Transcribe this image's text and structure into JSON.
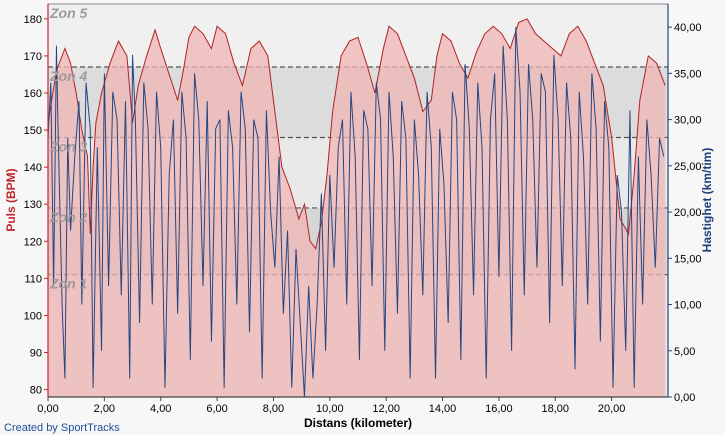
{
  "chart_data": {
    "type": "area",
    "xlabel": "Distans (kilometer)",
    "ylabel_left": "Puls (BPM)",
    "ylabel_right": "Hastighet (km/tim)",
    "xlim": [
      0,
      22
    ],
    "ylim_left": [
      78,
      184
    ],
    "ylim_right": [
      0,
      42.5
    ],
    "x_ticks": [
      "0,00",
      "2,00",
      "4,00",
      "6,00",
      "8,00",
      "10,00",
      "12,00",
      "14,00",
      "16,00",
      "18,00",
      "20,00"
    ],
    "x_tick_values": [
      0,
      2,
      4,
      6,
      8,
      10,
      12,
      14,
      16,
      18,
      20
    ],
    "y_left_ticks": [
      "80",
      "90",
      "100",
      "110",
      "120",
      "130",
      "140",
      "150",
      "160",
      "170",
      "180"
    ],
    "y_left_tick_values": [
      80,
      90,
      100,
      110,
      120,
      130,
      140,
      150,
      160,
      170,
      180
    ],
    "y_right_ticks": [
      "0,00",
      "5,00",
      "10,00",
      "15,00",
      "20,00",
      "25,00",
      "30,00",
      "35,00",
      "40,00"
    ],
    "y_right_tick_values": [
      0,
      5,
      10,
      15,
      20,
      25,
      30,
      35,
      40
    ],
    "zones": [
      {
        "label": "Zon 1",
        "from": 78,
        "to": 111
      },
      {
        "label": "Zon 2",
        "from": 111,
        "to": 129
      },
      {
        "label": "Zon 3",
        "from": 129,
        "to": 148
      },
      {
        "label": "Zon 4",
        "from": 148,
        "to": 167
      },
      {
        "label": "Zon 5",
        "from": 167,
        "to": 184
      }
    ],
    "series": [
      {
        "axis": "left",
        "color": "#b02222",
        "fill": "#f2b6b6",
        "x": [
          0,
          0.3,
          0.6,
          0.8,
          1.0,
          1.2,
          1.4,
          1.5,
          1.6,
          1.7,
          1.9,
          2.2,
          2.5,
          2.8,
          3.0,
          3.2,
          3.5,
          3.8,
          4.0,
          4.3,
          4.6,
          4.8,
          5.0,
          5.2,
          5.5,
          5.8,
          6.0,
          6.3,
          6.6,
          6.9,
          7.2,
          7.5,
          7.8,
          8.0,
          8.3,
          8.6,
          8.9,
          9.1,
          9.3,
          9.5,
          9.7,
          9.9,
          10.1,
          10.4,
          10.7,
          11.0,
          11.3,
          11.6,
          11.9,
          12.1,
          12.4,
          12.7,
          13.0,
          13.3,
          13.6,
          13.8,
          14.0,
          14.3,
          14.6,
          14.9,
          15.2,
          15.5,
          15.8,
          16.1,
          16.4,
          16.7,
          17.0,
          17.3,
          17.6,
          17.9,
          18.2,
          18.5,
          18.8,
          19.1,
          19.4,
          19.7,
          20.0,
          20.3,
          20.6,
          20.8,
          21.0,
          21.3,
          21.6,
          21.9
        ],
        "values": [
          152,
          166,
          172,
          168,
          160,
          150,
          143,
          122,
          140,
          152,
          160,
          168,
          174,
          170,
          152,
          162,
          170,
          177,
          172,
          165,
          158,
          166,
          175,
          178,
          176,
          172,
          178,
          176,
          168,
          162,
          172,
          174,
          170,
          158,
          140,
          134,
          126,
          130,
          120,
          118,
          125,
          138,
          155,
          170,
          174,
          175,
          168,
          160,
          172,
          178,
          176,
          170,
          164,
          155,
          158,
          170,
          176,
          174,
          168,
          164,
          171,
          176,
          178,
          176,
          172,
          179,
          180,
          176,
          174,
          172,
          170,
          176,
          178,
          174,
          168,
          162,
          148,
          126,
          122,
          138,
          158,
          170,
          168,
          162
        ]
      },
      {
        "axis": "right",
        "color": "#27477f",
        "x": [
          0,
          0.1,
          0.2,
          0.3,
          0.35,
          0.5,
          0.6,
          0.7,
          0.8,
          0.95,
          1.1,
          1.2,
          1.35,
          1.5,
          1.6,
          1.75,
          1.9,
          2.0,
          2.15,
          2.3,
          2.45,
          2.6,
          2.75,
          2.9,
          3.0,
          3.1,
          3.25,
          3.4,
          3.55,
          3.7,
          3.85,
          4.0,
          4.15,
          4.3,
          4.45,
          4.6,
          4.75,
          4.9,
          5.05,
          5.2,
          5.35,
          5.5,
          5.65,
          5.8,
          5.95,
          6.1,
          6.25,
          6.4,
          6.55,
          6.7,
          6.85,
          7.0,
          7.15,
          7.3,
          7.45,
          7.6,
          7.75,
          7.9,
          8.05,
          8.2,
          8.35,
          8.5,
          8.65,
          8.8,
          8.95,
          9.1,
          9.25,
          9.4,
          9.55,
          9.7,
          9.85,
          10.0,
          10.15,
          10.3,
          10.45,
          10.6,
          10.75,
          10.9,
          11.05,
          11.2,
          11.35,
          11.5,
          11.65,
          11.8,
          11.95,
          12.1,
          12.25,
          12.4,
          12.55,
          12.7,
          12.85,
          13.0,
          13.15,
          13.3,
          13.45,
          13.6,
          13.75,
          13.9,
          14.05,
          14.2,
          14.35,
          14.5,
          14.65,
          14.8,
          14.95,
          15.1,
          15.25,
          15.4,
          15.55,
          15.7,
          15.85,
          16.0,
          16.15,
          16.3,
          16.45,
          16.6,
          16.75,
          16.9,
          17.05,
          17.2,
          17.35,
          17.5,
          17.65,
          17.8,
          17.95,
          18.1,
          18.25,
          18.4,
          18.55,
          18.7,
          18.85,
          19.0,
          19.15,
          19.3,
          19.45,
          19.6,
          19.75,
          19.9,
          20.05,
          20.2,
          20.35,
          20.5,
          20.65,
          20.8,
          20.95,
          21.1,
          21.25,
          21.4,
          21.55,
          21.7,
          21.85
        ],
        "values": [
          28,
          34,
          12,
          38,
          30,
          10,
          2,
          28,
          18,
          26,
          32,
          10,
          34,
          29,
          1,
          27,
          5,
          35,
          12,
          33,
          30,
          11,
          32,
          2,
          37,
          30,
          8,
          34,
          29,
          10,
          33,
          27,
          1,
          24,
          30,
          9,
          33,
          28,
          4,
          35,
          30,
          12,
          32,
          6,
          29,
          30,
          1,
          31,
          27,
          10,
          33,
          29,
          7,
          30,
          28,
          2,
          31,
          20,
          14,
          26,
          9,
          18,
          1,
          16,
          8,
          0,
          12,
          2,
          10,
          22,
          5,
          24,
          14,
          27,
          30,
          10,
          33,
          26,
          4,
          31,
          29,
          12,
          34,
          30,
          5,
          33,
          26,
          9,
          32,
          28,
          2,
          30,
          24,
          11,
          33,
          27,
          2,
          29,
          23,
          8,
          33,
          30,
          4,
          36,
          29,
          11,
          34,
          27,
          2,
          30,
          35,
          13,
          38,
          30,
          5,
          40,
          33,
          11,
          36,
          30,
          14,
          35,
          33,
          8,
          37,
          30,
          12,
          34,
          28,
          3,
          33,
          26,
          10,
          35,
          29,
          6,
          32,
          27,
          1,
          24,
          20,
          5,
          31,
          1,
          26,
          10,
          30,
          24,
          14,
          28,
          26
        ]
      }
    ]
  },
  "credit": "Created by SportTracks"
}
